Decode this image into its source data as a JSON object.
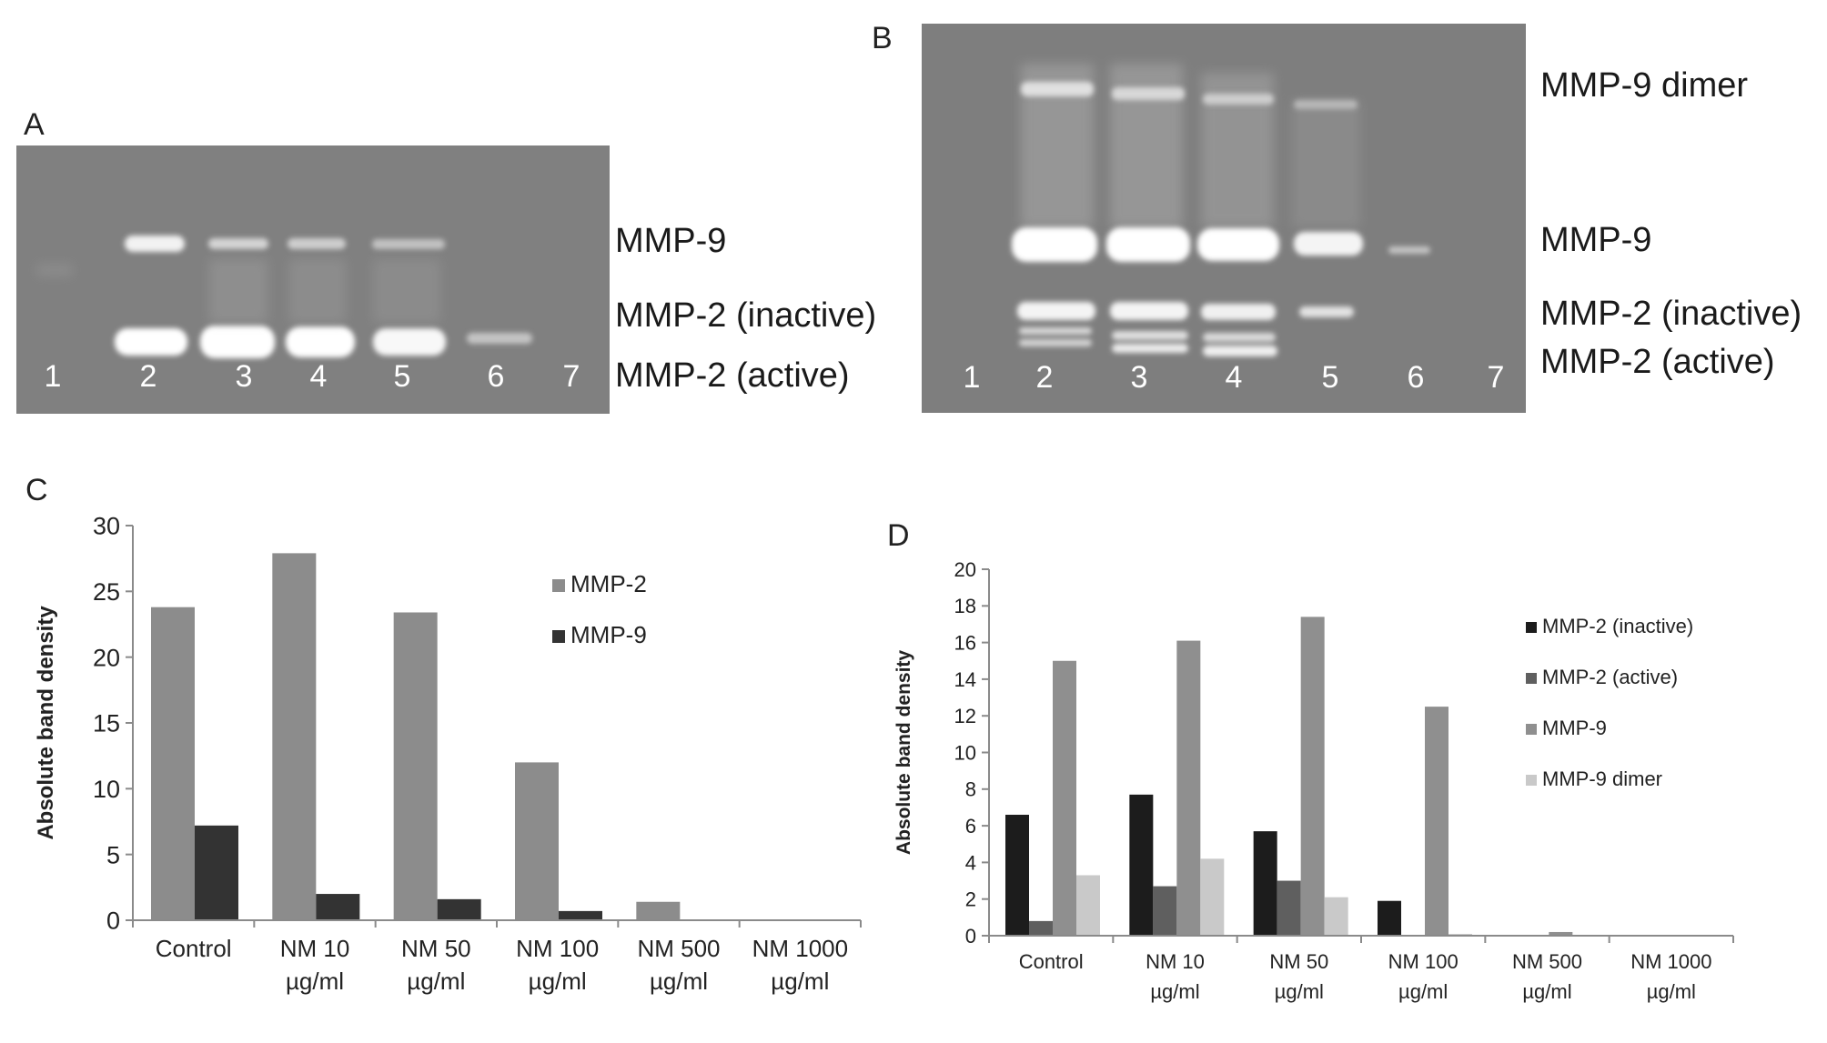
{
  "panels": {
    "A": {
      "letter": "A",
      "lane_numbers": [
        "1",
        "2",
        "3",
        "4",
        "5",
        "6",
        "7"
      ],
      "band_labels": [
        "MMP-9",
        "MMP-2 (inactive)",
        "MMP-2 (active)"
      ]
    },
    "B": {
      "letter": "B",
      "lane_numbers": [
        "1",
        "2",
        "3",
        "4",
        "5",
        "6",
        "7"
      ],
      "band_labels": [
        "MMP-9 dimer",
        "MMP-9",
        "MMP-2 (inactive)",
        "MMP-2 (active)"
      ]
    },
    "C": {
      "letter": "C"
    },
    "D": {
      "letter": "D"
    }
  },
  "chart_data": [
    {
      "type": "bar",
      "panel": "C",
      "categories": [
        [
          "Control"
        ],
        [
          "NM 10",
          "µg/ml"
        ],
        [
          "NM 50",
          "µg/ml"
        ],
        [
          "NM 100",
          "µg/ml"
        ],
        [
          "NM 500",
          "µg/ml"
        ],
        [
          "NM 1000",
          "µg/ml"
        ]
      ],
      "ylabel": "Absolute band density",
      "ylim": [
        0,
        30
      ],
      "yticks": [
        0,
        5,
        10,
        15,
        20,
        25,
        30
      ],
      "grid": false,
      "legend": "right",
      "series": [
        {
          "name": "MMP-2",
          "color": "#8c8c8c",
          "values": [
            23.8,
            27.9,
            23.4,
            12.0,
            1.4,
            0
          ]
        },
        {
          "name": "MMP-9",
          "color": "#333333",
          "values": [
            7.2,
            2.0,
            1.6,
            0.7,
            0,
            0
          ]
        }
      ]
    },
    {
      "type": "bar",
      "panel": "D",
      "categories": [
        [
          "Control"
        ],
        [
          "NM 10",
          "µg/ml"
        ],
        [
          "NM 50",
          "µg/ml"
        ],
        [
          "NM 100",
          "µg/ml"
        ],
        [
          "NM 500",
          "µg/ml"
        ],
        [
          "NM 1000",
          "µg/ml"
        ]
      ],
      "ylabel": "Absolute band density",
      "ylim": [
        0,
        20
      ],
      "yticks": [
        0,
        2,
        4,
        6,
        8,
        10,
        12,
        14,
        16,
        18,
        20
      ],
      "grid": false,
      "legend": "right",
      "series": [
        {
          "name": "MMP-2 (inactive)",
          "color": "#1c1c1c",
          "values": [
            6.6,
            7.7,
            5.7,
            1.9,
            0,
            0
          ]
        },
        {
          "name": "MMP-2 (active)",
          "color": "#5f5f5f",
          "values": [
            0.8,
            2.7,
            3.0,
            0,
            0,
            0
          ]
        },
        {
          "name": "MMP-9",
          "color": "#8f8f8f",
          "values": [
            15.0,
            16.1,
            17.4,
            12.5,
            0.2,
            0
          ]
        },
        {
          "name": "MMP-9 dimer",
          "color": "#c9c9c9",
          "values": [
            3.3,
            4.2,
            2.1,
            0.1,
            0,
            0
          ]
        }
      ]
    }
  ]
}
